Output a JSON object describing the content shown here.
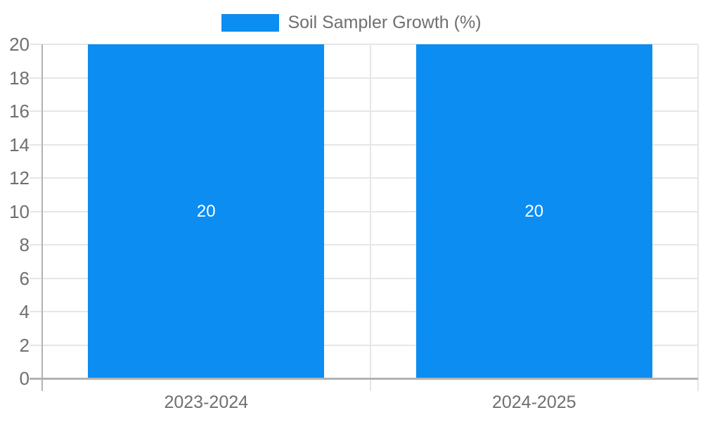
{
  "chart_data": {
    "type": "bar",
    "title": "Soil Sampler Growth (%)",
    "categories": [
      "2023-2024",
      "2024-2025"
    ],
    "values": [
      20,
      20
    ],
    "bar_labels": [
      "20",
      "20"
    ],
    "xlabel": "",
    "ylabel": "",
    "ylim": [
      0,
      20
    ],
    "ytick_step": 2,
    "grid": true,
    "legend_position": "top"
  },
  "colors": {
    "bar": "#0b8df2",
    "gridline": "#e6e6e6",
    "axis": "#b3b3b3",
    "text": "#6f6f6f",
    "value_label": "#ffffff",
    "background": "#ffffff"
  }
}
